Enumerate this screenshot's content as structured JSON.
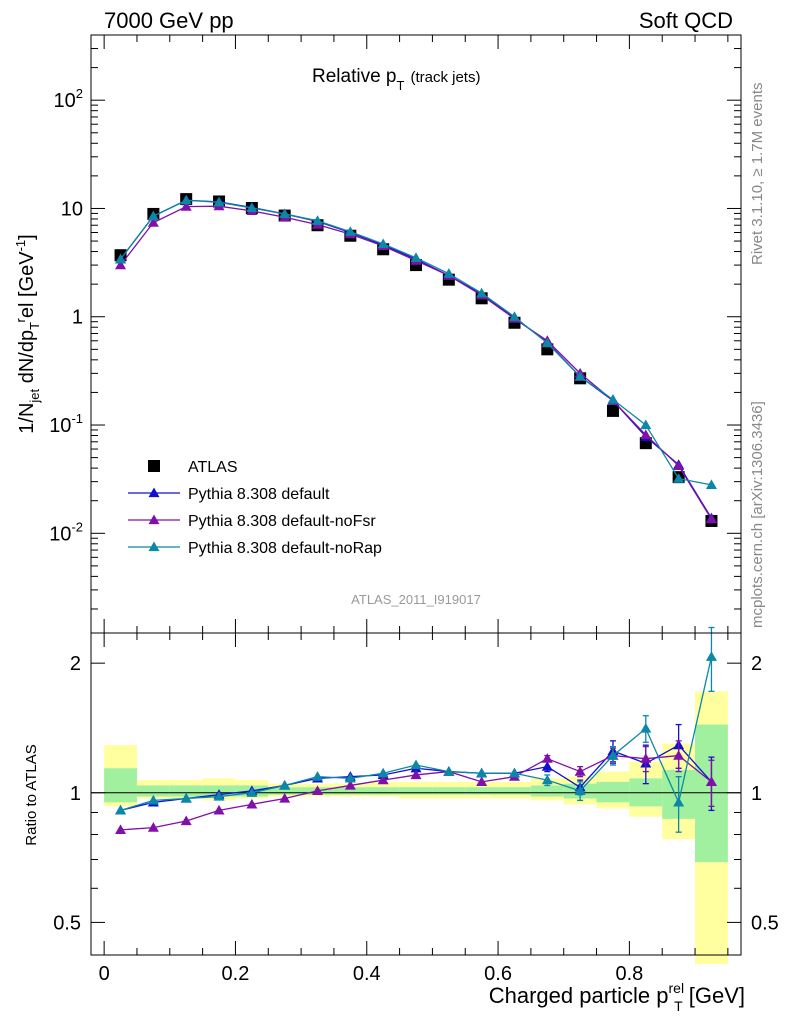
{
  "header": {
    "left": "7000 GeV pp",
    "right": "Soft QCD"
  },
  "side_text": {
    "rivet": "Rivet 3.1.10, ≥ 1.7M events",
    "mcplots": "mcplots.cern.ch [arXiv:1306.3436]"
  },
  "colors": {
    "atlas": "#000000",
    "default": "#1010d0",
    "noFsr": "#8010a8",
    "noRap": "#0b87a8",
    "band_stat": "#a0f0a0",
    "band_sys": "#ffff9f"
  },
  "chart_data": [
    {
      "type": "scatter",
      "title": "Relative p_T (track jets)",
      "title_main": "Relative p",
      "title_sub": "T",
      "title_suffix": "(track jets)",
      "analysis_id": "ATLAS_2011_I919017",
      "ylabel": "1/N_jet dN/dp_T^rel [GeV^-1]",
      "yscale": "log",
      "ylim": [
        0.0012,
        400
      ],
      "xlim": [
        -0.02,
        0.97
      ],
      "y_tick_labels": [
        "10^-2",
        "10^-1",
        "1",
        "10",
        "10^2"
      ],
      "legend_position": "middle-left",
      "x": [
        0.025,
        0.075,
        0.125,
        0.175,
        0.225,
        0.275,
        0.325,
        0.375,
        0.425,
        0.475,
        0.525,
        0.575,
        0.625,
        0.675,
        0.725,
        0.775,
        0.825,
        0.875,
        0.925
      ],
      "series": [
        {
          "name": "ATLAS",
          "key": "atlas",
          "marker": "square",
          "values": [
            3.7,
            8.9,
            12.2,
            11.6,
            10.1,
            8.6,
            7.0,
            5.6,
            4.2,
            3.0,
            2.2,
            1.48,
            0.88,
            0.5,
            0.27,
            0.135,
            0.068,
            0.033,
            0.013
          ]
        },
        {
          "name": "Pythia 8.308 default",
          "key": "default",
          "marker": "triangle",
          "values": [
            3.4,
            8.5,
            11.9,
            11.5,
            10.2,
            8.9,
            7.6,
            6.0,
            4.6,
            3.4,
            2.4,
            1.62,
            0.98,
            0.58,
            0.28,
            0.168,
            0.078,
            0.043,
            0.0138
          ]
        },
        {
          "name": "Pythia 8.308 default-noFsr",
          "key": "noFsr",
          "marker": "triangle",
          "values": [
            3.0,
            7.4,
            10.4,
            10.5,
            9.5,
            8.3,
            7.1,
            5.8,
            4.5,
            3.3,
            2.4,
            1.58,
            0.96,
            0.6,
            0.3,
            0.168,
            0.081,
            0.042,
            0.0135
          ]
        },
        {
          "name": "Pythia 8.308 default-noRap",
          "key": "noRap",
          "marker": "triangle",
          "values": [
            3.4,
            8.5,
            11.9,
            11.4,
            10.1,
            8.9,
            7.7,
            6.1,
            4.7,
            3.5,
            2.5,
            1.65,
            1.0,
            0.57,
            0.28,
            0.172,
            0.1,
            0.032,
            0.028
          ]
        }
      ]
    },
    {
      "type": "scatter",
      "ylabel": "Ratio to ATLAS",
      "xlabel": "Charged particle p_T^rel [GeV]",
      "xlabel_main": "Charged particle p",
      "xlabel_sup": "rel",
      "xlabel_sub": "T",
      "xlabel_suffix": " [GeV]",
      "yscale": "log",
      "ylim": [
        0.42,
        2.35
      ],
      "xlim": [
        -0.02,
        0.97
      ],
      "y_ticks": [
        0.5,
        1,
        2
      ],
      "y_tick_labels": [
        "0.5",
        "1",
        "2"
      ],
      "x_ticks": [
        0,
        0.2,
        0.4,
        0.6,
        0.8
      ],
      "x_tick_labels": [
        "0",
        "0.2",
        "0.4",
        "0.6",
        "0.8"
      ],
      "reference_line": 1,
      "bands": {
        "sys_low": [
          0.93,
          0.97,
          0.97,
          0.96,
          0.97,
          0.98,
          0.98,
          0.98,
          0.98,
          0.97,
          0.97,
          0.97,
          0.97,
          0.96,
          0.94,
          0.92,
          0.88,
          0.78,
          0.4
        ],
        "sys_high": [
          1.29,
          1.07,
          1.07,
          1.08,
          1.07,
          1.05,
          1.05,
          1.05,
          1.06,
          1.06,
          1.06,
          1.06,
          1.06,
          1.08,
          1.09,
          1.12,
          1.18,
          1.3,
          1.72
        ],
        "stat_low": [
          0.95,
          0.98,
          0.98,
          0.98,
          0.98,
          0.99,
          0.99,
          0.99,
          0.99,
          0.99,
          0.99,
          0.99,
          0.99,
          0.98,
          0.97,
          0.95,
          0.93,
          0.87,
          0.69
        ],
        "stat_high": [
          1.14,
          1.04,
          1.04,
          1.04,
          1.04,
          1.03,
          1.03,
          1.03,
          1.03,
          1.03,
          1.03,
          1.03,
          1.03,
          1.04,
          1.05,
          1.06,
          1.08,
          1.13,
          1.44
        ]
      },
      "series": [
        {
          "name": "Pythia 8.308 default",
          "key": "default",
          "values": [
            0.91,
            0.95,
            0.97,
            0.99,
            1.01,
            1.04,
            1.08,
            1.09,
            1.1,
            1.14,
            1.12,
            1.11,
            1.11,
            1.15,
            1.03,
            1.25,
            1.17,
            1.29,
            1.06
          ],
          "err": [
            0,
            0,
            0,
            0,
            0,
            0,
            0,
            0,
            0,
            0,
            0,
            0,
            0,
            0.03,
            0.04,
            0.07,
            0.12,
            0.15,
            0.15
          ]
        },
        {
          "name": "Pythia 8.308 default-noFsr",
          "key": "noFsr",
          "values": [
            0.82,
            0.83,
            0.86,
            0.91,
            0.94,
            0.97,
            1.01,
            1.04,
            1.07,
            1.1,
            1.12,
            1.06,
            1.09,
            1.2,
            1.12,
            1.22,
            1.2,
            1.22,
            1.06
          ],
          "err": [
            0,
            0,
            0,
            0,
            0,
            0,
            0,
            0,
            0,
            0,
            0,
            0,
            0,
            0.02,
            0.03,
            0.05,
            0.08,
            0.1,
            0.13
          ]
        },
        {
          "name": "Pythia 8.308 default-noRap",
          "key": "noRap",
          "values": [
            0.91,
            0.96,
            0.97,
            0.98,
            1.0,
            1.04,
            1.09,
            1.08,
            1.11,
            1.16,
            1.12,
            1.11,
            1.11,
            1.07,
            1.01,
            1.22,
            1.41,
            0.95,
            2.07
          ],
          "err": [
            0,
            0,
            0,
            0,
            0,
            0,
            0,
            0,
            0,
            0,
            0,
            0,
            0,
            0.03,
            0.05,
            0.06,
            0.1,
            0.14,
            0.35
          ]
        }
      ]
    }
  ]
}
